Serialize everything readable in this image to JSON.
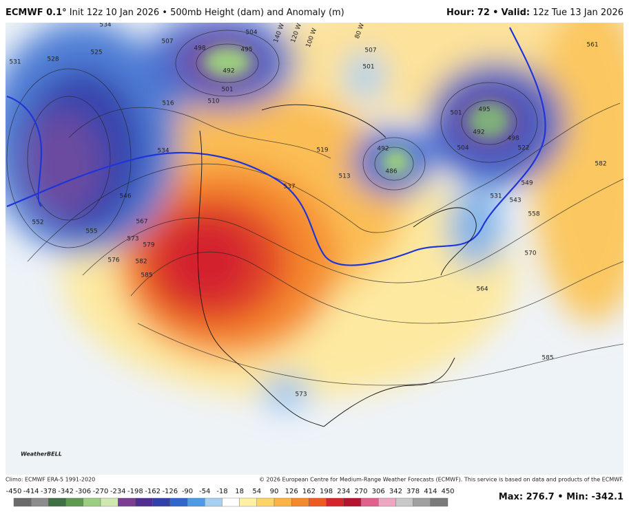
{
  "header": {
    "model": "ECMWF 0.1°",
    "init": "Init 12z 10 Jan 2026",
    "separator": "•",
    "field": "500mb Height (dam) and Anomaly (m)",
    "hour_label": "Hour:",
    "hour": 72,
    "valid_label": "Valid:",
    "valid": "12z Tue 13 Jan 2026"
  },
  "map": {
    "contour_labels": [
      534,
      528,
      525,
      531,
      507,
      498,
      492,
      495,
      504,
      501,
      510,
      516,
      534,
      546,
      552,
      555,
      567,
      573,
      576,
      579,
      582,
      585,
      537,
      519,
      513,
      501,
      507,
      495,
      492,
      498,
      501,
      504,
      522,
      492,
      486,
      531,
      543,
      549,
      558,
      570,
      564,
      585,
      582,
      561,
      573
    ],
    "longitude_labels": [
      "140 W",
      "120 W",
      "100 W",
      "80 W"
    ],
    "logo": "WeatherBELL"
  },
  "footer": {
    "climo": "Climo: ECMWF ERA-5 1991-2020",
    "copyright": "© 2026 European Centre for Medium-Range Weather Forecasts (ECMWF). This service is based on data and products of the ECMWF."
  },
  "colorbar": {
    "ticks": [
      -450,
      -414,
      -378,
      -342,
      -306,
      -270,
      -234,
      -198,
      -162,
      -126,
      -90,
      -54,
      -18,
      18,
      54,
      90,
      126,
      162,
      198,
      234,
      270,
      306,
      342,
      378,
      414,
      450
    ],
    "colors": [
      "#6a6a6a",
      "#8c8c8c",
      "#3f6f45",
      "#5f9a52",
      "#9ccd80",
      "#cfe8b0",
      "#7a3f95",
      "#4f2f8f",
      "#3340a8",
      "#2f67cc",
      "#4f9ae3",
      "#a6d0f2",
      "#ffffff",
      "#fff0a6",
      "#fdd46a",
      "#fbb246",
      "#f5892e",
      "#ec5b24",
      "#d7262b",
      "#b3142f",
      "#e0628c",
      "#efa6c0",
      "#c8c8c8",
      "#a0a0a0",
      "#7a7a7a"
    ]
  },
  "stats": {
    "max_label": "Max:",
    "max": 276.7,
    "separator": "•",
    "min_label": "Min:",
    "min": -342.1
  }
}
